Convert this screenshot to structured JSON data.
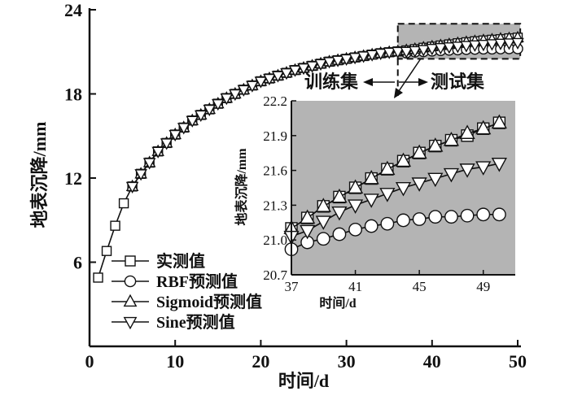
{
  "chart_data": {
    "type": "line",
    "title": "",
    "xlabel": "时间/d",
    "ylabel": "地表沉降/mm",
    "xlim": [
      0,
      50
    ],
    "ylim": [
      0,
      24
    ],
    "xticks": [
      "0",
      "10",
      "20",
      "30",
      "40",
      "50"
    ],
    "yticks": [
      "6",
      "12",
      "18",
      "24"
    ],
    "grid": false,
    "legend_position": "bottom-left",
    "series": [
      {
        "name": "实测值",
        "marker": "square",
        "x": [
          1,
          2,
          3,
          4,
          5,
          6,
          7,
          8,
          9,
          10,
          11,
          12,
          13,
          14,
          15,
          16,
          17,
          18,
          19,
          20,
          21,
          22,
          23,
          24,
          25,
          26,
          27,
          28,
          29,
          30,
          31,
          32,
          33,
          34,
          35,
          36,
          37,
          38,
          39,
          40,
          41,
          42,
          43,
          44,
          45,
          46,
          47,
          48,
          49,
          50
        ],
        "values": [
          4.9,
          6.8,
          8.6,
          10.2,
          11.4,
          12.3,
          13.1,
          13.9,
          14.5,
          15.1,
          15.6,
          16.1,
          16.5,
          16.9,
          17.3,
          17.7,
          18.0,
          18.3,
          18.6,
          18.9,
          19.1,
          19.3,
          19.5,
          19.7,
          19.85,
          20.0,
          20.15,
          20.3,
          20.4,
          20.5,
          20.6,
          20.7,
          20.8,
          20.9,
          20.97,
          21.03,
          21.1,
          21.19,
          21.29,
          21.37,
          21.45,
          21.53,
          21.61,
          21.68,
          21.75,
          21.81,
          21.86,
          21.9,
          21.96,
          22.01
        ]
      },
      {
        "name": "RBF预测值",
        "marker": "circle",
        "x": [
          37,
          38,
          39,
          40,
          41,
          42,
          43,
          44,
          45,
          46,
          47,
          48,
          49,
          50
        ],
        "values": [
          20.92,
          20.98,
          21.01,
          21.05,
          21.09,
          21.12,
          21.14,
          21.17,
          21.18,
          21.2,
          21.2,
          21.21,
          21.22,
          21.22
        ]
      },
      {
        "name": "Sigmoid预测值",
        "marker": "triangle-up",
        "x": [
          5,
          6,
          7,
          8,
          9,
          10,
          11,
          12,
          13,
          14,
          15,
          16,
          17,
          18,
          19,
          20,
          21,
          22,
          23,
          24,
          25,
          26,
          27,
          28,
          29,
          30,
          31,
          32,
          33,
          34,
          35,
          36,
          37,
          38,
          39,
          40,
          41,
          42,
          43,
          44,
          45,
          46,
          47,
          48,
          49,
          50
        ],
        "values": [
          11.4,
          12.3,
          13.1,
          13.9,
          14.5,
          15.1,
          15.6,
          16.1,
          16.5,
          16.9,
          17.3,
          17.7,
          18.0,
          18.3,
          18.6,
          18.9,
          19.1,
          19.3,
          19.5,
          19.7,
          19.85,
          20.0,
          20.15,
          20.3,
          20.4,
          20.5,
          20.6,
          20.7,
          20.8,
          20.9,
          20.97,
          21.03,
          21.1,
          21.19,
          21.29,
          21.37,
          21.45,
          21.53,
          21.61,
          21.68,
          21.75,
          21.81,
          21.86,
          21.92,
          21.96,
          22.01
        ]
      },
      {
        "name": "Sine预测值",
        "marker": "triangle-down",
        "x": [
          5,
          6,
          7,
          8,
          9,
          10,
          11,
          12,
          13,
          14,
          15,
          16,
          17,
          18,
          19,
          20,
          21,
          22,
          23,
          24,
          25,
          26,
          27,
          28,
          29,
          30,
          31,
          32,
          33,
          34,
          35,
          36,
          37,
          38,
          39,
          40,
          41,
          42,
          43,
          44,
          45,
          46,
          47,
          48,
          49,
          50
        ],
        "values": [
          11.4,
          12.3,
          13.1,
          13.9,
          14.5,
          15.1,
          15.6,
          16.1,
          16.5,
          16.9,
          17.3,
          17.7,
          18.0,
          18.3,
          18.6,
          18.9,
          19.1,
          19.3,
          19.5,
          19.7,
          19.85,
          20.0,
          20.15,
          20.3,
          20.4,
          20.5,
          20.6,
          20.7,
          20.8,
          20.9,
          20.97,
          21.02,
          21.03,
          21.08,
          21.16,
          21.24,
          21.3,
          21.35,
          21.4,
          21.45,
          21.49,
          21.53,
          21.57,
          21.61,
          21.63,
          21.66
        ]
      }
    ],
    "annotations": {
      "train": "训练集",
      "test": "测试集",
      "split_day": 36
    },
    "inset": {
      "xlabel": "时间/d",
      "ylabel": "地表沉降/mm",
      "xlim": [
        37,
        51
      ],
      "ylim": [
        20.7,
        22.2
      ],
      "xticks": [
        "37",
        "41",
        "45",
        "49"
      ],
      "yticks": [
        "20.7",
        "21.0",
        "21.3",
        "21.6",
        "21.9",
        "22.2"
      ],
      "background": "#b4b4b4"
    }
  }
}
